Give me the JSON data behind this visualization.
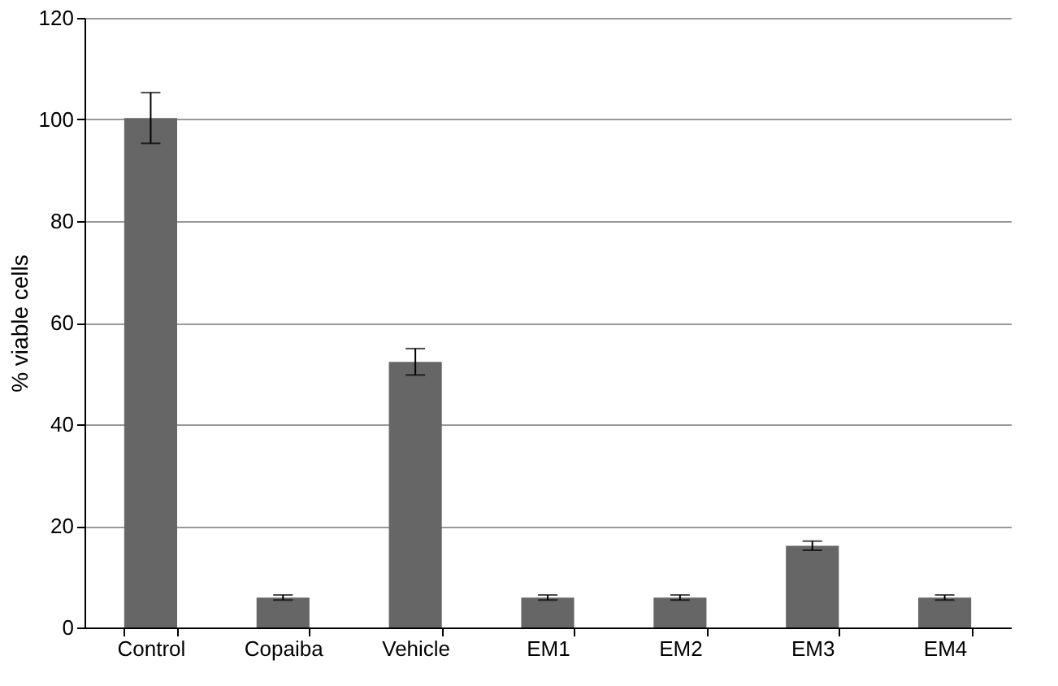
{
  "chart_data": {
    "type": "bar",
    "ylabel": "% viable cells",
    "categories": [
      "Control",
      "Copaiba",
      "Vehicle",
      "EM1",
      "EM2",
      "EM3",
      "EM4"
    ],
    "values": [
      100.3,
      5.9,
      52.3,
      5.9,
      5.9,
      16.1,
      5.9
    ],
    "errors": [
      5,
      0.5,
      2.6,
      0.5,
      0.5,
      0.9,
      0.5
    ],
    "color": "#666666",
    "ylim": [
      0,
      120
    ],
    "yticks": [
      0,
      20,
      40,
      60,
      80,
      100,
      120
    ],
    "grid": "y"
  }
}
